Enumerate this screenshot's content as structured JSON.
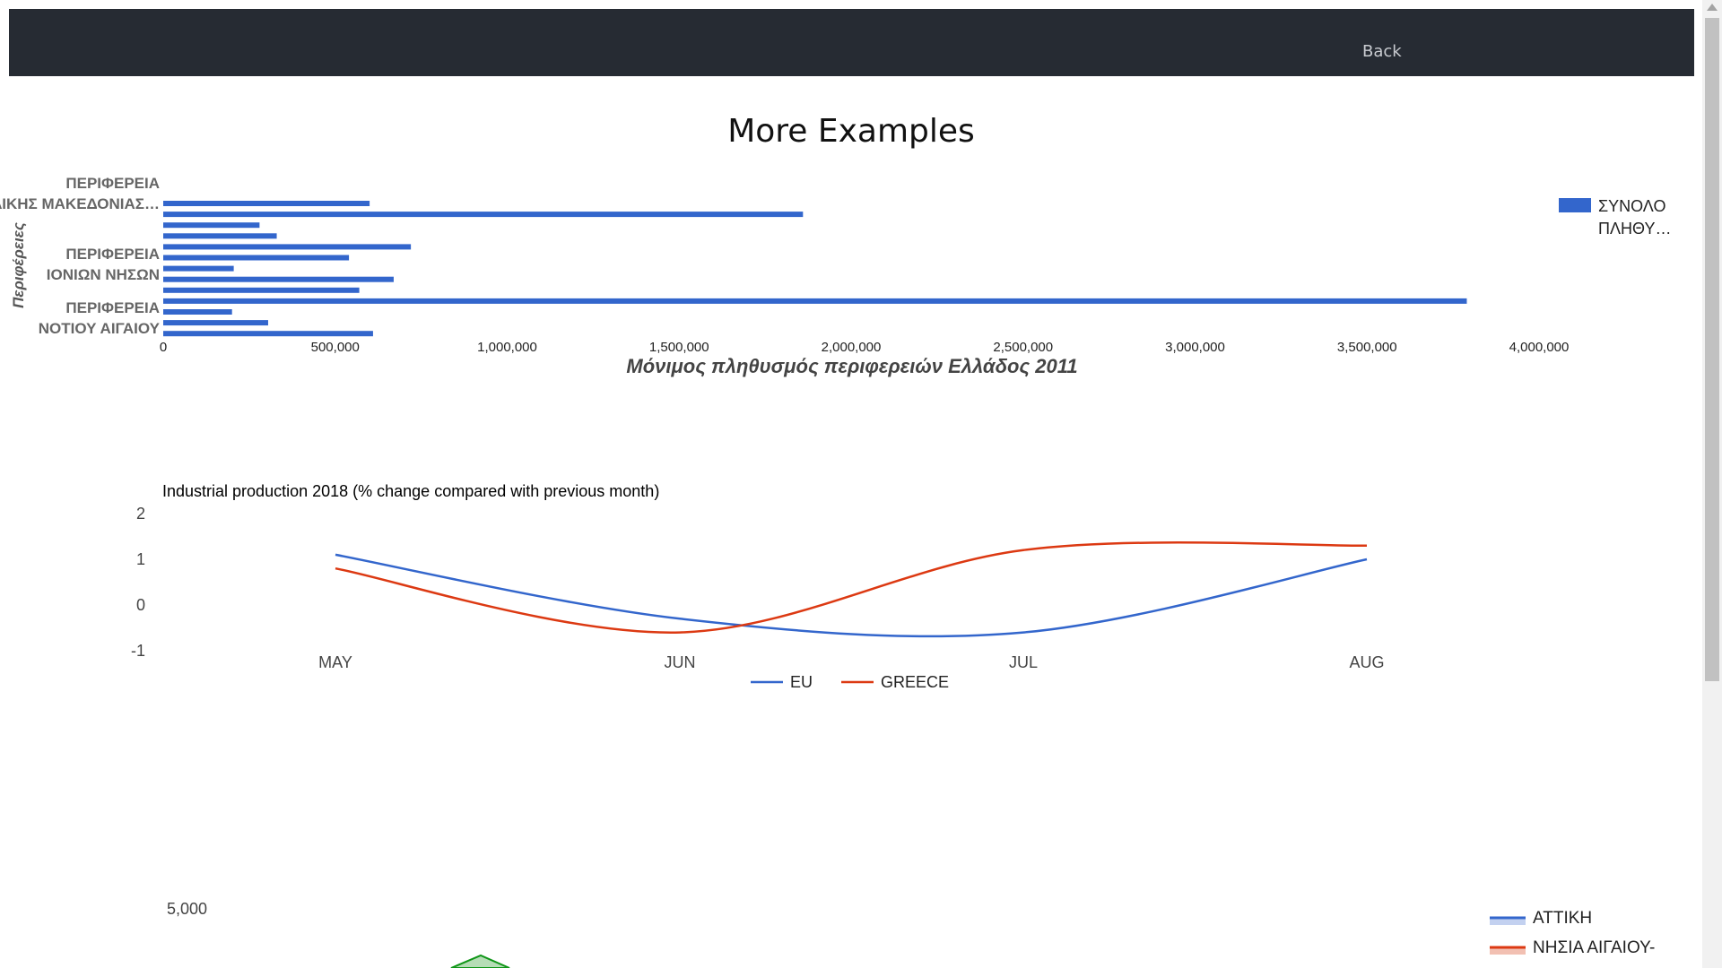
{
  "nav": {
    "back_label": "Back"
  },
  "page": {
    "title": "More Examples"
  },
  "colors": {
    "navbar": "#262b33",
    "bar": "#3366cc",
    "eu": "#3366cc",
    "greece": "#dc3912",
    "green": "#109618"
  },
  "chart_data": [
    {
      "type": "bar",
      "orientation": "horizontal",
      "title": "",
      "xlabel": "Μόνιμος πληθυσμός περιφερειών Ελλάδος 2011",
      "ylabel": "Περιφέρειες",
      "xlim": [
        0,
        4000000
      ],
      "xticks": [
        "0",
        "500,000",
        "1,000,000",
        "1,500,000",
        "2,000,000",
        "2,500,000",
        "3,000,000",
        "3,500,000",
        "4,000,000"
      ],
      "visible_category_labels": [
        "ΠΕΡΙΦΕΡΕΙΑ ΑΝΑΤΟΛΙΚΗΣ ΜΑΚΕΔΟΝΙΑΣ…",
        "ΠΕΡΙΦΕΡΕΙΑ ΙΟΝΙΩΝ ΝΗΣΩΝ",
        "ΠΕΡΙΦΕΡΕΙΑ ΝΟΤΙΟΥ ΑΙΓΑΙΟΥ"
      ],
      "values": [
        600000,
        1860000,
        280000,
        330000,
        720000,
        540000,
        205000,
        670000,
        570000,
        3790000,
        200000,
        305000,
        610000
      ],
      "legend": "ΣΥΝΟΛΟ ΠΛΗΘΥ…"
    },
    {
      "type": "line",
      "title": "Industrial production 2018 (% change compared with previous month)",
      "categories": [
        "MAY",
        "JUN",
        "JUL",
        "AUG"
      ],
      "yticks": [
        "2",
        "1",
        "0",
        "-1"
      ],
      "ylim": [
        -1,
        2
      ],
      "series": [
        {
          "name": "EU",
          "values": [
            1.1,
            -0.3,
            -0.6,
            1.0
          ]
        },
        {
          "name": "GREECE",
          "values": [
            0.8,
            -0.6,
            1.2,
            1.3
          ]
        }
      ]
    },
    {
      "type": "area",
      "ytick_top": "5,000",
      "legend": [
        "ΑΤΤΙΚΗ",
        "ΝΗΣΙΑ ΑΙΓΑΙΟΥ-ΚΡΗΤΗ"
      ]
    }
  ]
}
